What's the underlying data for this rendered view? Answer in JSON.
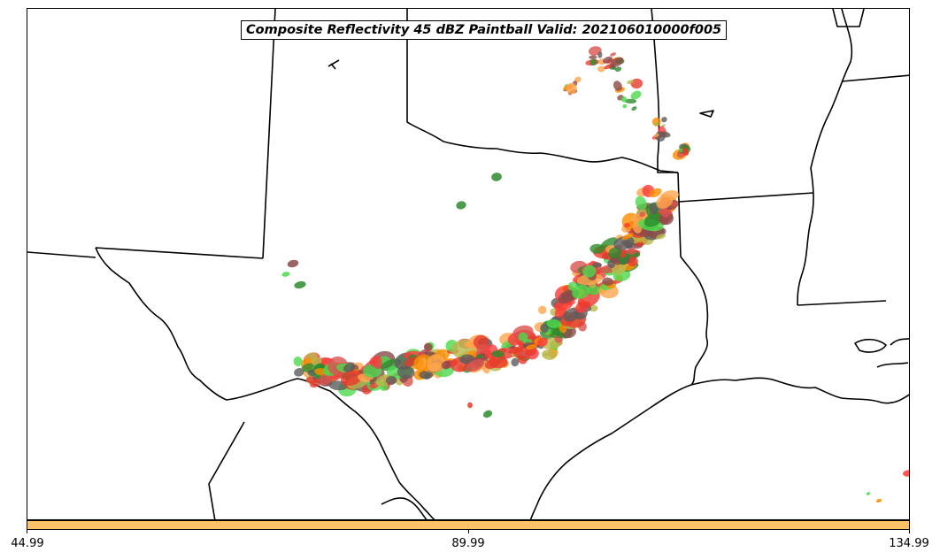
{
  "title": "Composite Reflectivity 45 dBZ Paintball Valid: 202106010000f005",
  "colorbar": {
    "color": "#ffc266",
    "ticks": [
      "44.99",
      "89.99",
      "134.99"
    ]
  },
  "colors": {
    "boundary": "#000000",
    "paintball": [
      "#e8392d",
      "#ff8c00",
      "#ffa64d",
      "#2e8b2e",
      "#4cd94c",
      "#8b4a4a",
      "#5c5c5c",
      "#b8b84a",
      "#d9534f",
      "#ff3b3b"
    ]
  },
  "map_features": [
    "state-boundaries",
    "coastline",
    "paintball-storm-cells"
  ]
}
